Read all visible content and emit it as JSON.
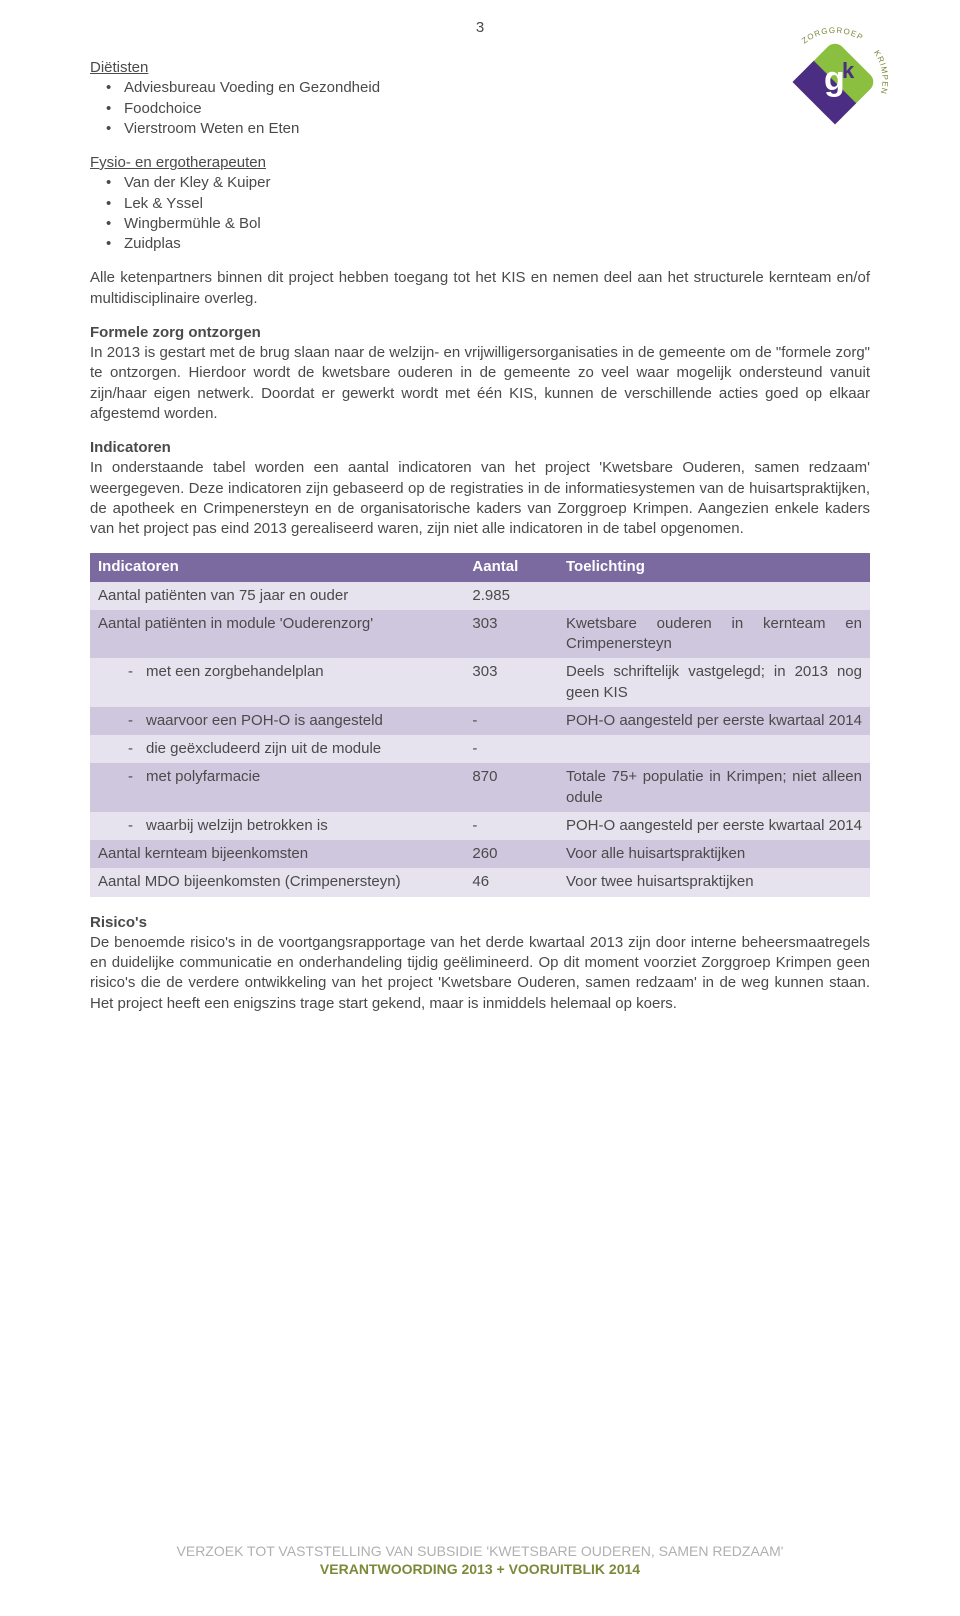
{
  "page_number": "3",
  "logo": {
    "top_text": "ZORGGROEP",
    "right_text": "KRIMPEN",
    "colors": {
      "purple": "#4b2e83",
      "green": "#8bbf3f",
      "text": "#7a8a3a"
    }
  },
  "sections": {
    "dietisten": {
      "heading": "Diëtisten",
      "items": [
        "Adviesbureau Voeding en Gezondheid",
        "Foodchoice",
        "Vierstroom Weten en Eten"
      ]
    },
    "fysio": {
      "heading": "Fysio- en ergotherapeuten",
      "items": [
        "Van der Kley & Kuiper",
        "Lek & Yssel",
        "Wingbermühle & Bol",
        "Zuidplas"
      ]
    }
  },
  "paragraphs": {
    "ketenpartners": "Alle ketenpartners binnen dit project hebben toegang tot het KIS en nemen deel aan het structurele kernteam en/of multidisciplinaire overleg.",
    "formele_heading": "Formele zorg ontzorgen",
    "formele_body": "In 2013 is gestart met de brug slaan naar de welzijn- en vrijwilligersorganisaties in de gemeente om de \"formele zorg\" te ontzorgen. Hierdoor wordt de kwetsbare ouderen in de gemeente zo veel waar mogelijk ondersteund vanuit zijn/haar eigen netwerk. Doordat er gewerkt wordt met één KIS, kunnen de verschillende acties goed op elkaar afgestemd worden.",
    "indicatoren_heading": "Indicatoren",
    "indicatoren_body": "In onderstaande tabel worden een aantal indicatoren van het project 'Kwetsbare Ouderen, samen redzaam' weergegeven. Deze indicatoren zijn gebaseerd op de registraties in de informatiesystemen van de huisartspraktijken, de apotheek en Crimpenersteyn en de organisatorische kaders van Zorggroep Krimpen. Aangezien enkele kaders van het project pas eind 2013 gerealiseerd waren, zijn niet alle indicatoren in de tabel opgenomen.",
    "risicos_heading": "Risico's",
    "risicos_body": "De benoemde risico's in de voortgangsrapportage van het derde kwartaal 2013 zijn door interne beheersmaatregels en duidelijke communicatie en onderhandeling tijdig geëlimineerd. Op dit moment voorziet Zorggroep Krimpen geen risico's die de verdere ontwikkeling van het project 'Kwetsbare Ouderen, samen redzaam' in de weg kunnen staan. Het project heeft een enigszins trage start gekend, maar is inmiddels helemaal op koers."
  },
  "table": {
    "header": {
      "indicatoren": "Indicatoren",
      "aantal": "Aantal",
      "toelichting": "Toelichting"
    },
    "header_bg": "#7a6aa0",
    "row_light_bg": "#e6e2ee",
    "row_dark_bg": "#cfc7de",
    "rows": [
      {
        "indent": false,
        "label": "Aantal patiënten van 75 jaar en ouder",
        "aantal": "2.985",
        "toelichting": "",
        "shade": "light"
      },
      {
        "indent": false,
        "label": "Aantal patiënten in module 'Ouderenzorg'",
        "aantal": "303",
        "toelichting": "Kwetsbare ouderen in kernteam en Crimpenersteyn",
        "shade": "dark"
      },
      {
        "indent": true,
        "label": "met een zorgbehandelplan",
        "aantal": "303",
        "toelichting": "Deels schriftelijk vastgelegd; in 2013 nog geen KIS",
        "shade": "light"
      },
      {
        "indent": true,
        "label": "waarvoor een POH-O is aangesteld",
        "aantal": "-",
        "toelichting": "POH-O aangesteld per eerste kwartaal 2014",
        "shade": "dark"
      },
      {
        "indent": true,
        "label": "die geëxcludeerd zijn uit de module",
        "aantal": "-",
        "toelichting": "",
        "shade": "light"
      },
      {
        "indent": true,
        "label": "met polyfarmacie",
        "aantal": "870",
        "toelichting": "Totale 75+ populatie in Krimpen; niet alleen odule",
        "shade": "dark"
      },
      {
        "indent": true,
        "label": "waarbij welzijn betrokken is",
        "aantal": "-",
        "toelichting": "POH-O aangesteld per eerste kwartaal 2014",
        "shade": "light"
      },
      {
        "indent": false,
        "label": "Aantal kernteam bijeenkomsten",
        "aantal": "260",
        "toelichting": "Voor alle huisartspraktijken",
        "shade": "dark"
      },
      {
        "indent": false,
        "label": "Aantal MDO bijeenkomsten (Crimpenersteyn)",
        "aantal": "46",
        "toelichting": "Voor twee huisartspraktijken",
        "shade": "light"
      }
    ],
    "col_widths": {
      "indicatoren": "48%",
      "aantal": "12%",
      "toelichting": "40%"
    }
  },
  "footer": {
    "line1": "VERZOEK TOT VASTSTELLING VAN SUBSIDIE 'KWETSBARE OUDEREN, SAMEN REDZAAM'",
    "line2": "VERANTWOORDING 2013 + VOORUITBLIK 2014"
  }
}
